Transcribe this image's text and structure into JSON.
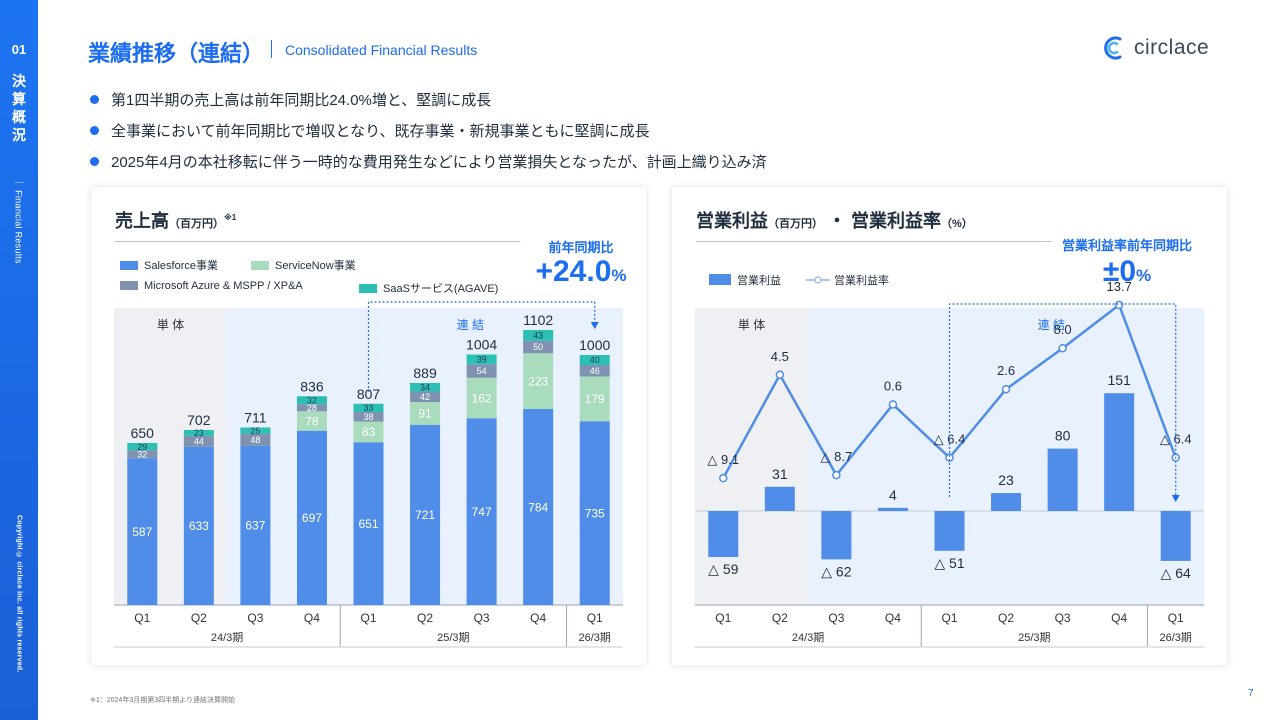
{
  "sidebar": {
    "section_number": "01",
    "section_title": "決算概況",
    "section_subtitle": "Financial Results",
    "copyright": "Copyright © circlace inc. all rights reserved."
  },
  "header": {
    "title": "業績推移（連結）",
    "subtitle": "Consolidated Financial Results",
    "logo_text": "circlace"
  },
  "bullets": [
    "第1四半期の売上高は前年同期比24.0%増と、堅調に成長",
    "全事業において前年同期比で増収となり、既存事業・新規事業ともに堅調に成長",
    "2025年4月の本社移転に伴う一時的な費用発生などにより営業損失となったが、計画上織り込み済"
  ],
  "colors": {
    "accent": "#1d6df0",
    "salesforce": "#4f8de8",
    "servicenow": "#a9dcbd",
    "azure": "#7f93b0",
    "saas": "#2cc0b3",
    "standalone_bg": "#eef0f3",
    "consolidated_bg": "#e8f1fd",
    "op_bar": "#4f8de8",
    "op_line": "#4f8de8"
  },
  "chart_data": [
    {
      "type": "bar",
      "stacked": true,
      "title": "売上高",
      "unit": "（百万円）",
      "note_mark": "※1",
      "categories": [
        "Q1",
        "Q2",
        "Q3",
        "Q4",
        "Q1",
        "Q2",
        "Q3",
        "Q4",
        "Q1"
      ],
      "period_groups": [
        {
          "label": "24/3期",
          "count": 4
        },
        {
          "label": "25/3期",
          "count": 4
        },
        {
          "label": "26/3期",
          "count": 1
        }
      ],
      "region_labels": {
        "standalone": "単 体",
        "consolidated": "連 結"
      },
      "standalone_count": 2,
      "series": [
        {
          "name": "Salesforce事業",
          "values": [
            587,
            633,
            637,
            697,
            651,
            721,
            747,
            784,
            735
          ]
        },
        {
          "name": "ServiceNow事業",
          "values": [
            0,
            0,
            0,
            78,
            83,
            91,
            162,
            223,
            179
          ]
        },
        {
          "name": "Microsoft Azure & MSPP / XP&A",
          "values": [
            32,
            44,
            48,
            28,
            38,
            42,
            54,
            50,
            46
          ]
        },
        {
          "name": "SaaSサービス(AGAVE)",
          "values": [
            29,
            23,
            25,
            32,
            33,
            34,
            39,
            43,
            40
          ]
        }
      ],
      "totals": [
        650,
        702,
        711,
        836,
        807,
        889,
        1004,
        1102,
        1000
      ],
      "ylim": [
        0,
        1200
      ],
      "yoy_label": "前年同期比",
      "yoy_value": "+24.0",
      "yoy_unit": "%"
    },
    {
      "type": "bar+line",
      "title": "営業利益",
      "unit": "（百万円）",
      "title_sep": "・",
      "title2": "営業利益率",
      "unit2": "（%）",
      "categories": [
        "Q1",
        "Q2",
        "Q3",
        "Q4",
        "Q1",
        "Q2",
        "Q3",
        "Q4",
        "Q1"
      ],
      "period_groups": [
        {
          "label": "24/3期",
          "count": 4
        },
        {
          "label": "25/3期",
          "count": 4
        },
        {
          "label": "26/3期",
          "count": 1
        }
      ],
      "region_labels": {
        "standalone": "単 体",
        "consolidated": "連 結"
      },
      "standalone_count": 2,
      "series": [
        {
          "name": "営業利益",
          "type": "bar",
          "values": [
            -59,
            31,
            -62,
            4,
            -51,
            23,
            80,
            151,
            -64
          ],
          "labels": [
            "△ 59",
            "31",
            "△ 62",
            "4",
            "△ 51",
            "23",
            "80",
            "151",
            "△ 64"
          ]
        },
        {
          "name": "営業利益率",
          "type": "line",
          "values": [
            -9.1,
            4.5,
            -8.7,
            0.6,
            -6.4,
            2.6,
            8.0,
            13.7,
            -6.4
          ],
          "labels": [
            "△ 9.1",
            "4.5",
            "△ 8.7",
            "0.6",
            "△ 6.4",
            "2.6",
            "8.0",
            "13.7",
            "△ 6.4"
          ]
        }
      ],
      "yoy_label": "営業利益率前年同期比",
      "yoy_value": "±0",
      "yoy_unit": "%"
    }
  ],
  "footnote": "※1：2024年3月期第3四半期より連結決算開始",
  "page_number": "7"
}
